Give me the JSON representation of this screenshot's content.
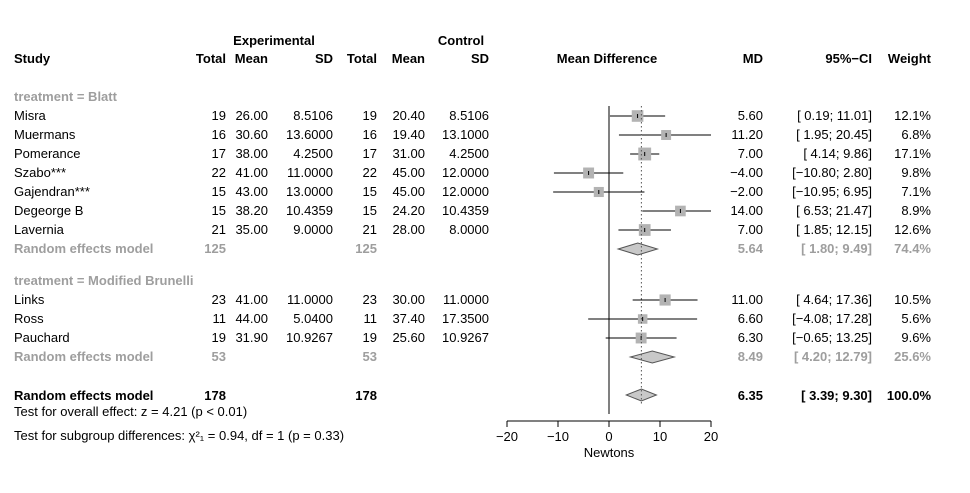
{
  "chart_data": {
    "type": "forest",
    "header": {
      "group_experimental": "Experimental",
      "group_control": "Control",
      "study": "Study",
      "total_e": "Total",
      "mean_e": "Mean",
      "sd_e": "SD",
      "total_c": "Total",
      "mean_c": "Mean",
      "sd_c": "SD",
      "plot": "Mean Difference",
      "md": "MD",
      "ci": "95%−CI",
      "weight": "Weight"
    },
    "subgroups": [
      {
        "label": "treatment = Blatt",
        "studies": [
          {
            "study": "Misra",
            "total_e": "19",
            "mean_e": "26.00",
            "sd_e": "8.5106",
            "total_c": "19",
            "mean_c": "20.40",
            "sd_c": "8.5106",
            "md": 5.6,
            "lower": 0.19,
            "upper": 11.01,
            "md_text": "5.60",
            "ci_text": "[ 0.19; 11.01]",
            "weight": 12.1,
            "weight_text": "12.1%"
          },
          {
            "study": "Muermans",
            "total_e": "16",
            "mean_e": "30.60",
            "sd_e": "13.6000",
            "total_c": "16",
            "mean_c": "19.40",
            "sd_c": "13.1000",
            "md": 11.2,
            "lower": 1.95,
            "upper": 20.45,
            "md_text": "11.20",
            "ci_text": "[ 1.95; 20.45]",
            "weight": 6.8,
            "weight_text": "6.8%"
          },
          {
            "study": "Pomerance",
            "total_e": "17",
            "mean_e": "38.00",
            "sd_e": "4.2500",
            "total_c": "17",
            "mean_c": "31.00",
            "sd_c": "4.2500",
            "md": 7.0,
            "lower": 4.14,
            "upper": 9.86,
            "md_text": "7.00",
            "ci_text": "[ 4.14; 9.86]",
            "weight": 17.1,
            "weight_text": "17.1%"
          },
          {
            "study": "Szabo***",
            "total_e": "22",
            "mean_e": "41.00",
            "sd_e": "11.0000",
            "total_c": "22",
            "mean_c": "45.00",
            "sd_c": "12.0000",
            "md": -4.0,
            "lower": -10.8,
            "upper": 2.8,
            "md_text": "−4.00",
            "ci_text": "[−10.80; 2.80]",
            "weight": 9.8,
            "weight_text": "9.8%"
          },
          {
            "study": "Gajendran***",
            "total_e": "15",
            "mean_e": "43.00",
            "sd_e": "13.0000",
            "total_c": "15",
            "mean_c": "45.00",
            "sd_c": "12.0000",
            "md": -2.0,
            "lower": -10.95,
            "upper": 6.95,
            "md_text": "−2.00",
            "ci_text": "[−10.95; 6.95]",
            "weight": 7.1,
            "weight_text": "7.1%"
          },
          {
            "study": "Degeorge B",
            "total_e": "15",
            "mean_e": "38.20",
            "sd_e": "10.4359",
            "total_c": "15",
            "mean_c": "24.20",
            "sd_c": "10.4359",
            "md": 14.0,
            "lower": 6.53,
            "upper": 21.47,
            "md_text": "14.00",
            "ci_text": "[ 6.53; 21.47]",
            "weight": 8.9,
            "weight_text": "8.9%"
          },
          {
            "study": "Lavernia",
            "total_e": "21",
            "mean_e": "35.00",
            "sd_e": "9.0000",
            "total_c": "21",
            "mean_c": "28.00",
            "sd_c": "8.0000",
            "md": 7.0,
            "lower": 1.85,
            "upper": 12.15,
            "md_text": "7.00",
            "ci_text": "[ 1.85; 12.15]",
            "weight": 12.6,
            "weight_text": "12.6%"
          }
        ],
        "summary": {
          "label": "Random effects model",
          "total_e": "125",
          "total_c": "125",
          "md": 5.64,
          "lower": 1.8,
          "upper": 9.49,
          "md_text": "5.64",
          "ci_text": "[ 1.80; 9.49]",
          "weight_text": "74.4%"
        }
      },
      {
        "label": "treatment = Modified Brunelli",
        "studies": [
          {
            "study": "Links",
            "total_e": "23",
            "mean_e": "41.00",
            "sd_e": "11.0000",
            "total_c": "23",
            "mean_c": "30.00",
            "sd_c": "11.0000",
            "md": 11.0,
            "lower": 4.64,
            "upper": 17.36,
            "md_text": "11.00",
            "ci_text": "[ 4.64; 17.36]",
            "weight": 10.5,
            "weight_text": "10.5%"
          },
          {
            "study": "Ross",
            "total_e": "11",
            "mean_e": "44.00",
            "sd_e": "5.0400",
            "total_c": "11",
            "mean_c": "37.40",
            "sd_c": "17.3500",
            "md": 6.6,
            "lower": -4.08,
            "upper": 17.28,
            "md_text": "6.60",
            "ci_text": "[−4.08; 17.28]",
            "weight": 5.6,
            "weight_text": "5.6%"
          },
          {
            "study": "Pauchard",
            "total_e": "19",
            "mean_e": "31.90",
            "sd_e": "10.9267",
            "total_c": "19",
            "mean_c": "25.60",
            "sd_c": "10.9267",
            "md": 6.3,
            "lower": -0.65,
            "upper": 13.25,
            "md_text": "6.30",
            "ci_text": "[−0.65; 13.25]",
            "weight": 9.6,
            "weight_text": "9.6%"
          }
        ],
        "summary": {
          "label": "Random effects model",
          "total_e": "53",
          "total_c": "53",
          "md": 8.49,
          "lower": 4.2,
          "upper": 12.79,
          "md_text": "8.49",
          "ci_text": "[ 4.20; 12.79]",
          "weight_text": "25.6%"
        }
      }
    ],
    "overall": {
      "label": "Random effects model",
      "total_e": "178",
      "total_c": "178",
      "md": 6.35,
      "lower": 3.39,
      "upper": 9.3,
      "md_text": "6.35",
      "ci_text": "[ 3.39; 9.30]",
      "weight_text": "100.0%"
    },
    "test_overall": "Test for overall effect: z = 4.21 (p < 0.01)",
    "test_subgroup": "Test for subgroup differences: χ²₁ = 0.94, df = 1 (p = 0.33)",
    "xlim": [
      -20,
      20
    ],
    "xticks": [
      -20,
      -10,
      0,
      10,
      20
    ],
    "xlabel": "Newtons",
    "colors": {
      "text": "#000000",
      "muted": "#9e9e9e",
      "square": "#b3b3b3",
      "diamond": "#c8c8c8",
      "reference": "#555555"
    }
  }
}
